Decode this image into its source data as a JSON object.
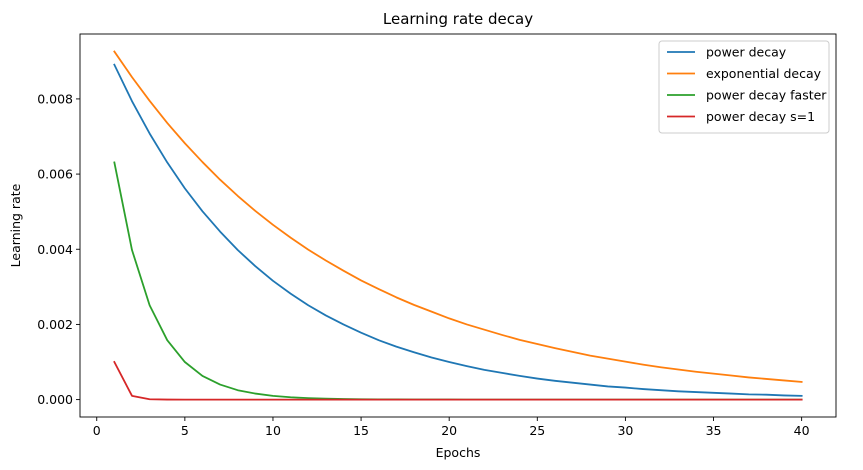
{
  "chart_data": {
    "type": "line",
    "title": "Learning rate decay",
    "xlabel": "Epochs",
    "ylabel": "Learning rate",
    "xlim": [
      -0.95,
      41.95
    ],
    "ylim": [
      -0.000463,
      0.009727
    ],
    "xticks": [
      0,
      5,
      10,
      15,
      20,
      25,
      30,
      35,
      40
    ],
    "xtick_labels": [
      "0",
      "5",
      "10",
      "15",
      "20",
      "25",
      "30",
      "35",
      "40"
    ],
    "yticks": [
      0,
      0.002,
      0.004,
      0.006,
      0.008
    ],
    "ytick_labels": [
      "0.000",
      "0.002",
      "0.004",
      "0.006",
      "0.008"
    ],
    "grid": false,
    "legend_position": "top-right",
    "x": [
      1,
      2,
      3,
      4,
      5,
      6,
      7,
      8,
      9,
      10,
      11,
      12,
      13,
      14,
      15,
      16,
      17,
      18,
      19,
      20,
      21,
      22,
      23,
      24,
      25,
      26,
      27,
      28,
      29,
      30,
      31,
      32,
      33,
      34,
      35,
      36,
      37,
      38,
      39,
      40
    ],
    "series": [
      {
        "name": "power decay",
        "color": "#1f77b4",
        "values": [
          0.00891,
          0.00794,
          0.00708,
          0.00631,
          0.00562,
          0.00501,
          0.00447,
          0.00398,
          0.00355,
          0.00316,
          0.00282,
          0.00251,
          0.00224,
          0.002,
          0.00178,
          0.00158,
          0.00141,
          0.00126,
          0.00112,
          0.001,
          0.00089,
          0.00079,
          0.00071,
          0.00063,
          0.00056,
          0.0005,
          0.00045,
          0.0004,
          0.00035,
          0.00032,
          0.00028,
          0.00025,
          0.00022,
          0.0002,
          0.00018,
          0.00016,
          0.00014,
          0.00013,
          0.00011,
          0.0001
        ]
      },
      {
        "name": "exponential decay",
        "color": "#ff7f0e",
        "values": [
          0.00926,
          0.00858,
          0.00795,
          0.00736,
          0.00682,
          0.00632,
          0.00585,
          0.00542,
          0.00502,
          0.00465,
          0.00431,
          0.00399,
          0.0037,
          0.00343,
          0.00317,
          0.00294,
          0.00272,
          0.00252,
          0.00234,
          0.00216,
          0.002,
          0.00186,
          0.00172,
          0.00159,
          0.00148,
          0.00137,
          0.00127,
          0.00117,
          0.00109,
          0.00101,
          0.00093,
          0.00086,
          0.0008,
          0.00074,
          0.00069,
          0.00064,
          0.00059,
          0.00055,
          0.00051,
          0.00047
        ]
      },
      {
        "name": "power decay faster",
        "color": "#2ca02c",
        "values": [
          0.00631,
          0.00398,
          0.00251,
          0.00158,
          0.001,
          0.00063,
          0.0004,
          0.00025,
          0.00016,
          0.0001,
          6.3e-05,
          4e-05,
          2.5e-05,
          1.6e-05,
          1e-05,
          6.3e-06,
          4e-06,
          2.5e-06,
          1.6e-06,
          1e-06,
          0,
          0,
          0,
          0,
          0,
          0,
          0,
          0,
          0,
          0,
          0,
          0,
          0,
          0,
          0,
          0,
          0,
          0,
          0,
          0
        ]
      },
      {
        "name": "power decay s=1",
        "color": "#d62728",
        "values": [
          0.001,
          0.0001,
          1e-05,
          1e-06,
          0,
          0,
          0,
          0,
          0,
          0,
          0,
          0,
          0,
          0,
          0,
          0,
          0,
          0,
          0,
          0,
          0,
          0,
          0,
          0,
          0,
          0,
          0,
          0,
          0,
          0,
          0,
          0,
          0,
          0,
          0,
          0,
          0,
          0,
          0,
          0
        ]
      }
    ]
  }
}
